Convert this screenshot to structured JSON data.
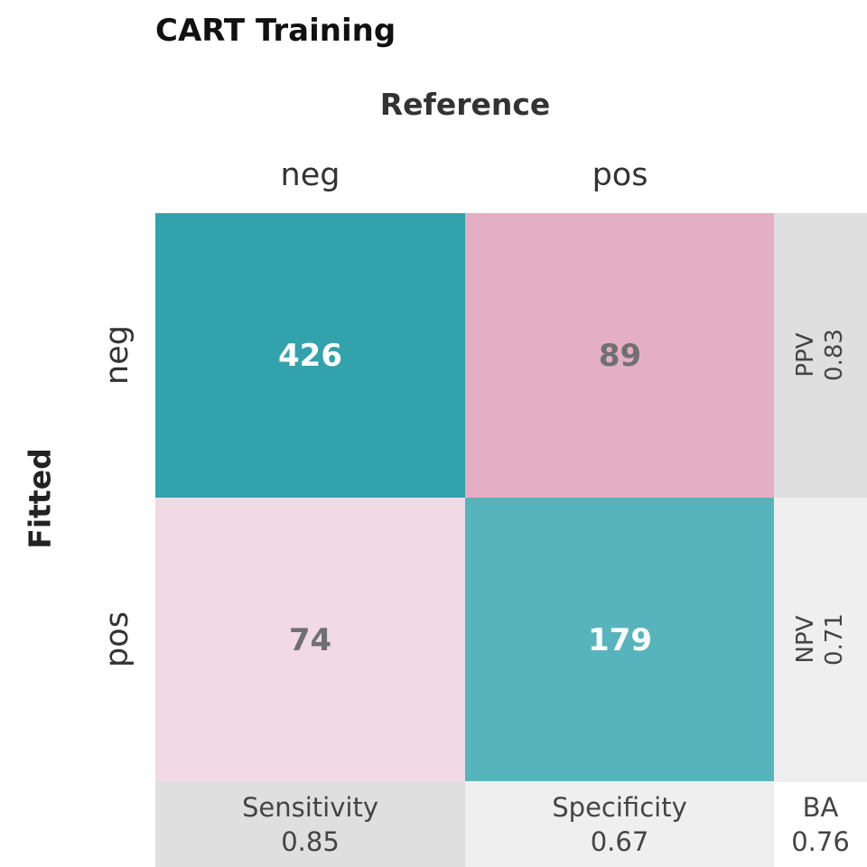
{
  "chart_data": {
    "type": "heatmap",
    "title": "CART Training",
    "xlabel": "Reference",
    "ylabel": "Fitted",
    "column_labels": [
      "neg",
      "pos"
    ],
    "row_labels": [
      "neg",
      "pos"
    ],
    "matrix": [
      [
        426,
        89
      ],
      [
        74,
        179
      ]
    ],
    "row_metrics": [
      {
        "name": "PPV",
        "value": "0.83"
      },
      {
        "name": "NPV",
        "value": "0.71"
      }
    ],
    "column_metrics": [
      {
        "name": "Sensitivity",
        "value": "0.85"
      },
      {
        "name": "Specificity",
        "value": "0.67"
      }
    ],
    "overall_metric": {
      "name": "BA",
      "value": "0.76"
    },
    "colors": {
      "true_neg": "#32A2AC",
      "true_pos": "#58B4BC",
      "false_pos": "#E4AEC5",
      "false_neg": "#F1DAE4",
      "metric_dark": "#DFDFDF",
      "metric_light": "#EFEFEF",
      "text_light": "#FFFFFF",
      "text_dark": "#707070"
    }
  }
}
